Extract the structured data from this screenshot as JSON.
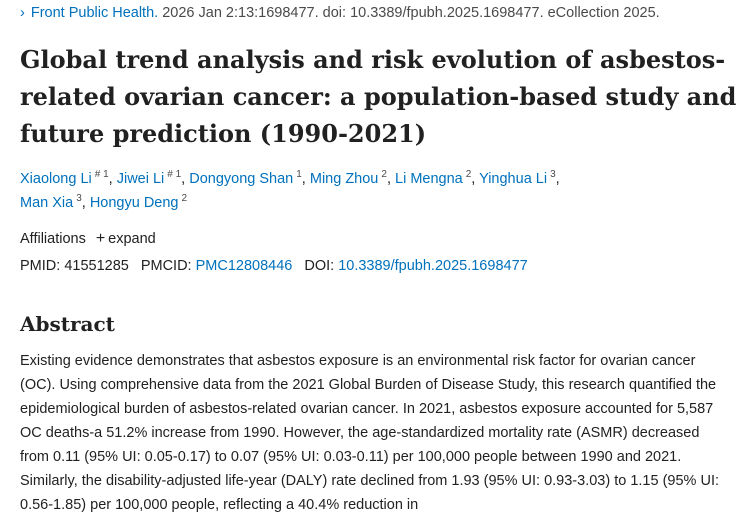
{
  "citation": {
    "arrow": "›",
    "journal": "Front Public Health.",
    "details": " 2026 Jan 2:13:1698477. doi: 10.3389/fpubh.2025.1698477. eCollection 2025."
  },
  "title": "Global trend analysis and risk evolution of asbestos-related ovarian cancer: a population-based study and future prediction (1990-2021)",
  "authors": [
    {
      "name": "Xiaolong Li",
      "sup": "# 1"
    },
    {
      "name": "Jiwei Li",
      "sup": "# 1"
    },
    {
      "name": "Dongyong Shan",
      "sup": "1"
    },
    {
      "name": "Ming Zhou",
      "sup": "2"
    },
    {
      "name": "Li Mengna",
      "sup": "2"
    },
    {
      "name": "Yinghua Li",
      "sup": "3"
    },
    {
      "name": "Man Xia",
      "sup": "3"
    },
    {
      "name": "Hongyu Deng",
      "sup": "2"
    }
  ],
  "affiliations": {
    "label": "Affiliations",
    "expand_icon": "plus-icon",
    "expand_label": "expand"
  },
  "ids": {
    "pmid_label": "PMID:",
    "pmid": "41551285",
    "pmcid_label": "PMCID:",
    "pmcid": "PMC12808446",
    "doi_label": "DOI:",
    "doi": "10.3389/fpubh.2025.1698477"
  },
  "abstract": {
    "heading": "Abstract",
    "text": "Existing evidence demonstrates that asbestos exposure is an environmental risk factor for ovarian cancer (OC). Using comprehensive data from the 2021 Global Burden of Disease Study, this research quantified the epidemiological burden of asbestos-related ovarian cancer. In 2021, asbestos exposure accounted for 5,587 OC deaths-a 51.2% increase from 1990. However, the age-standardized mortality rate (ASMR) decreased from 0.11 (95% UI: 0.05-0.17) to 0.07 (95% UI: 0.03-0.11) per 100,000 people between 1990 and 2021. Similarly, the disability-adjusted life-year (DALY) rate declined from 1.93 (95% UI: 0.93-3.03) to 1.15 (95% UI: 0.56-1.85) per 100,000 people, reflecting a 40.4% reduction in"
  }
}
